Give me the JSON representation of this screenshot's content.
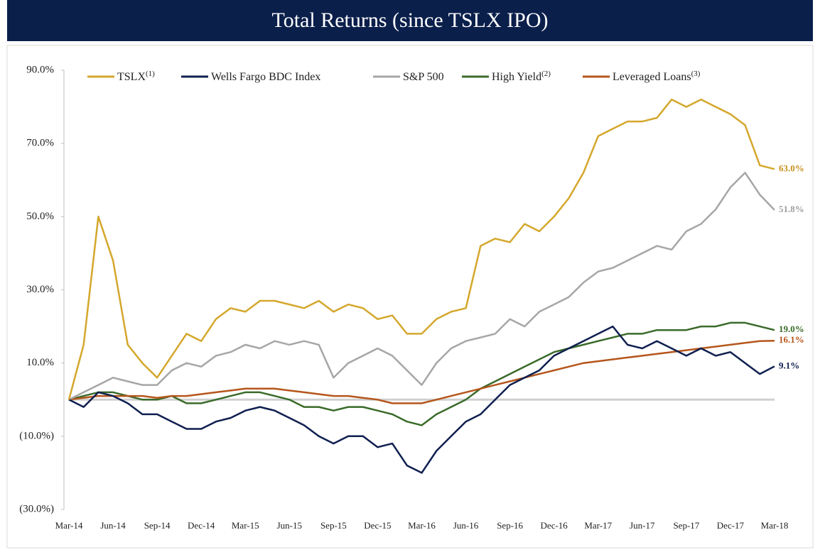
{
  "chart_data": {
    "type": "line",
    "title": "Total Returns (since TSLX IPO)",
    "categories": [
      "Mar-14",
      null,
      null,
      "Jun-14",
      null,
      null,
      "Sep-14",
      null,
      null,
      "Dec-14",
      null,
      null,
      "Mar-15",
      null,
      null,
      "Jun-15",
      null,
      null,
      "Sep-15",
      null,
      null,
      "Dec-15",
      null,
      null,
      "Mar-16",
      null,
      null,
      "Jun-16",
      null,
      null,
      "Sep-16",
      null,
      null,
      "Dec-16",
      null,
      null,
      "Mar-17",
      null,
      null,
      "Jun-17",
      null,
      null,
      "Sep-17",
      null,
      null,
      "Dec-17",
      null,
      null,
      "Mar-18"
    ],
    "ylim": [
      -30,
      90
    ],
    "yticks": [
      {
        "value": 90,
        "label": "90.0%"
      },
      {
        "value": 70,
        "label": "70.0%"
      },
      {
        "value": 50,
        "label": "50.0%"
      },
      {
        "value": 30,
        "label": "30.0%"
      },
      {
        "value": 10,
        "label": "10.0%"
      },
      {
        "value": -10,
        "label": "(10.0%)"
      },
      {
        "value": -30,
        "label": "(30.0%)"
      }
    ],
    "legend": "top",
    "series": [
      {
        "name": "TSLX",
        "footnote": "(1)",
        "color": "#d4a72c",
        "label_color": "#c8901e",
        "values": [
          0,
          15,
          50,
          38,
          15,
          10,
          6,
          12,
          18,
          16,
          22,
          25,
          24,
          27,
          27,
          26,
          25,
          27,
          24,
          26,
          25,
          22,
          23,
          18,
          18,
          22,
          24,
          25,
          42,
          44,
          43,
          48,
          46,
          50,
          55,
          62,
          72,
          74,
          76,
          76,
          77,
          82,
          80,
          82,
          80,
          78,
          75,
          64,
          63
        ],
        "value_labels": [
          null,
          null,
          null,
          null,
          null,
          null,
          null,
          null,
          null,
          null,
          null,
          null,
          null,
          null,
          null,
          null,
          null,
          null,
          null,
          null,
          null,
          null,
          null,
          null,
          null,
          null,
          null,
          null,
          null,
          null,
          null,
          null,
          null,
          null,
          null,
          null,
          null,
          null,
          null,
          null,
          null,
          null,
          null,
          null,
          null,
          null,
          null,
          null,
          "63.0%"
        ]
      },
      {
        "name": "Wells Fargo BDC Index",
        "color": "#0f1f4f",
        "label_color": "#0f1f4f",
        "values": [
          0,
          -2,
          2,
          1,
          -1,
          -4,
          -4,
          -6,
          -8,
          -8,
          -6,
          -5,
          -3,
          -2,
          -3,
          -5,
          -7,
          -10,
          -12,
          -10,
          -10,
          -13,
          -12,
          -18,
          -20,
          -14,
          -10,
          -6,
          -4,
          0,
          4,
          6,
          8,
          12,
          14,
          16,
          18,
          20,
          15,
          14,
          16,
          14,
          12,
          14,
          12,
          13,
          10,
          7,
          9.1
        ],
        "value_labels": [
          null,
          null,
          null,
          null,
          null,
          null,
          null,
          null,
          null,
          null,
          null,
          null,
          null,
          null,
          null,
          null,
          null,
          null,
          null,
          null,
          null,
          null,
          null,
          null,
          null,
          null,
          null,
          null,
          null,
          null,
          null,
          null,
          null,
          null,
          null,
          null,
          null,
          null,
          null,
          null,
          null,
          null,
          null,
          null,
          null,
          null,
          null,
          null,
          "9.1%"
        ]
      },
      {
        "name": "S&P 500",
        "color": "#a6a6a6",
        "label_color": "#a0a0a0",
        "values": [
          0,
          2,
          4,
          6,
          5,
          4,
          4,
          8,
          10,
          9,
          12,
          13,
          15,
          14,
          16,
          15,
          16,
          15,
          6,
          10,
          12,
          14,
          12,
          8,
          4,
          10,
          14,
          16,
          17,
          18,
          22,
          20,
          24,
          26,
          28,
          32,
          35,
          36,
          38,
          40,
          42,
          41,
          46,
          48,
          52,
          58,
          62,
          56,
          51.8
        ],
        "value_labels": [
          null,
          null,
          null,
          null,
          null,
          null,
          null,
          null,
          null,
          null,
          null,
          null,
          null,
          null,
          null,
          null,
          null,
          null,
          null,
          null,
          null,
          null,
          null,
          null,
          null,
          null,
          null,
          null,
          null,
          null,
          null,
          null,
          null,
          null,
          null,
          null,
          null,
          null,
          null,
          null,
          null,
          null,
          null,
          null,
          null,
          null,
          null,
          null,
          "51.8%"
        ]
      },
      {
        "name": "High Yield",
        "footnote": "(2)",
        "color": "#3a6b2a",
        "label_color": "#3a6b2a",
        "values": [
          0,
          1,
          2,
          2,
          1,
          0,
          0,
          1,
          -1,
          -1,
          0,
          1,
          2,
          2,
          1,
          0,
          -2,
          -2,
          -3,
          -2,
          -2,
          -3,
          -4,
          -6,
          -7,
          -4,
          -2,
          0,
          3,
          5,
          7,
          9,
          11,
          13,
          14,
          15,
          16,
          17,
          18,
          18,
          19,
          19,
          19,
          20,
          20,
          21,
          21,
          20,
          19.0
        ],
        "value_labels": [
          null,
          null,
          null,
          null,
          null,
          null,
          null,
          null,
          null,
          null,
          null,
          null,
          null,
          null,
          null,
          null,
          null,
          null,
          null,
          null,
          null,
          null,
          null,
          null,
          null,
          null,
          null,
          null,
          null,
          null,
          null,
          null,
          null,
          null,
          null,
          null,
          null,
          null,
          null,
          null,
          null,
          null,
          null,
          null,
          null,
          null,
          null,
          null,
          "19.0%"
        ]
      },
      {
        "name": "Leveraged Loans",
        "footnote": "(3)",
        "color": "#b5561c",
        "label_color": "#b5561c",
        "values": [
          0,
          0.5,
          1,
          1,
          1,
          1,
          0.5,
          1,
          1,
          1.5,
          2,
          2.5,
          3,
          3,
          3,
          2.5,
          2,
          1.5,
          1,
          1,
          0.5,
          0,
          -1,
          -1,
          -1,
          0,
          1,
          2,
          3,
          4,
          5,
          6,
          7,
          8,
          9,
          10,
          10.5,
          11,
          11.5,
          12,
          12.5,
          13,
          13.5,
          14,
          14.5,
          15,
          15.5,
          16,
          16.1
        ],
        "value_labels": [
          null,
          null,
          null,
          null,
          null,
          null,
          null,
          null,
          null,
          null,
          null,
          null,
          null,
          null,
          null,
          null,
          null,
          null,
          null,
          null,
          null,
          null,
          null,
          null,
          null,
          null,
          null,
          null,
          null,
          null,
          null,
          null,
          null,
          null,
          null,
          null,
          null,
          null,
          null,
          null,
          null,
          null,
          null,
          null,
          null,
          null,
          null,
          null,
          "16.1%"
        ]
      }
    ]
  }
}
